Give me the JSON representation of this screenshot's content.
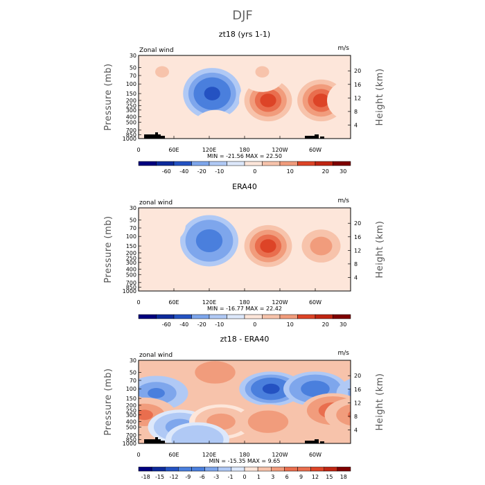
{
  "figure_title": "DJF",
  "chart_data": [
    {
      "type": "heatmap",
      "title": "zt18 (yrs 1-1)",
      "variable_label": "Zonal wind",
      "units": "m/s",
      "ylabel_left": "Pressure (mb)",
      "ylabel_right": "Height (km)",
      "x_ticks": [
        "0",
        "60E",
        "120E",
        "180",
        "120W",
        "60W"
      ],
      "pressure_ticks": [
        "30",
        "50",
        "70",
        "100",
        "150",
        "200",
        "250",
        "300",
        "400",
        "500",
        "700",
        "850",
        "1000"
      ],
      "height_ticks": [
        "4",
        "8",
        "12",
        "16",
        "20"
      ],
      "stats": "MIN = -21.56   MAX =  22.50",
      "min": -21.56,
      "max": 22.5,
      "colorbar_labels": [
        "-60",
        "-40",
        "-20",
        "-10",
        "0",
        "10",
        "20",
        "30"
      ],
      "features": [
        {
          "lon": 125,
          "p": 150,
          "value": -21.5
        },
        {
          "lon": 220,
          "p": 200,
          "value": 22.5
        },
        {
          "lon": 310,
          "p": 200,
          "value": 20
        },
        {
          "lon": 40,
          "p": 60,
          "value": 6
        },
        {
          "lon": 210,
          "p": 60,
          "value": 6
        },
        {
          "lon": 130,
          "p": 700,
          "value": 4
        },
        {
          "lon": 0,
          "p": 200,
          "value": 3
        }
      ]
    },
    {
      "type": "heatmap",
      "title": "ERA40",
      "variable_label": "zonal wind",
      "units": "m/s",
      "ylabel_left": "Pressure (mb)",
      "ylabel_right": "Height (km)",
      "x_ticks": [
        "0",
        "60E",
        "120E",
        "180",
        "120W",
        "60W"
      ],
      "pressure_ticks": [
        "30",
        "50",
        "70",
        "100",
        "150",
        "200",
        "250",
        "300",
        "400",
        "500",
        "700",
        "850",
        "1000"
      ],
      "height_ticks": [
        "4",
        "8",
        "12",
        "16",
        "20"
      ],
      "stats": "MIN = -16.77   MAX =  22.42",
      "min": -16.77,
      "max": 22.42,
      "colorbar_labels": [
        "-60",
        "-40",
        "-20",
        "-10",
        "0",
        "10",
        "20",
        "30"
      ],
      "features": [
        {
          "lon": 120,
          "p": 120,
          "value": -16.5
        },
        {
          "lon": 220,
          "p": 150,
          "value": 22.4
        },
        {
          "lon": 310,
          "p": 150,
          "value": 14
        },
        {
          "lon": 40,
          "p": 60,
          "value": 2
        },
        {
          "lon": 160,
          "p": 700,
          "value": 3
        }
      ]
    },
    {
      "type": "heatmap",
      "title": "zt18 - ERA40",
      "variable_label": "zonal wind",
      "units": "m/s",
      "ylabel_left": "Pressure (mb)",
      "ylabel_right": "Height (km)",
      "x_ticks": [
        "0",
        "60E",
        "120E",
        "180",
        "120W",
        "60W"
      ],
      "pressure_ticks": [
        "30",
        "50",
        "70",
        "100",
        "150",
        "200",
        "250",
        "300",
        "400",
        "500",
        "700",
        "850",
        "1000"
      ],
      "height_ticks": [
        "4",
        "8",
        "12",
        "16",
        "20"
      ],
      "stats": "MIN = -15.35   MAX =    9.65",
      "min": -15.35,
      "max": 9.65,
      "colorbar_labels": [
        "-18",
        "-15",
        "-12",
        "-9",
        "-6",
        "-3",
        "-1",
        "0",
        "1",
        "3",
        "6",
        "9",
        "12",
        "15",
        "18"
      ],
      "features": [
        {
          "lon": 225,
          "p": 100,
          "value": -15
        },
        {
          "lon": 300,
          "p": 100,
          "value": -9
        },
        {
          "lon": 30,
          "p": 120,
          "value": -7
        },
        {
          "lon": 330,
          "p": 250,
          "value": 9.5
        },
        {
          "lon": 10,
          "p": 300,
          "value": 7
        },
        {
          "lon": 130,
          "p": 50,
          "value": 5
        },
        {
          "lon": 70,
          "p": 500,
          "value": -5
        },
        {
          "lon": 140,
          "p": 400,
          "value": 4
        },
        {
          "lon": 220,
          "p": 400,
          "value": 5
        },
        {
          "lon": 100,
          "p": 850,
          "value": -3
        }
      ]
    }
  ],
  "colors": {
    "scale": [
      "#00007f",
      "#0d2a9b",
      "#2452c2",
      "#4a7fdd",
      "#7ea6ec",
      "#b0c9f5",
      "#dde8fb",
      "#fde6da",
      "#f7c3ab",
      "#f19c7c",
      "#e96e4e",
      "#dd4427",
      "#bf2512",
      "#7f0000"
    ]
  }
}
